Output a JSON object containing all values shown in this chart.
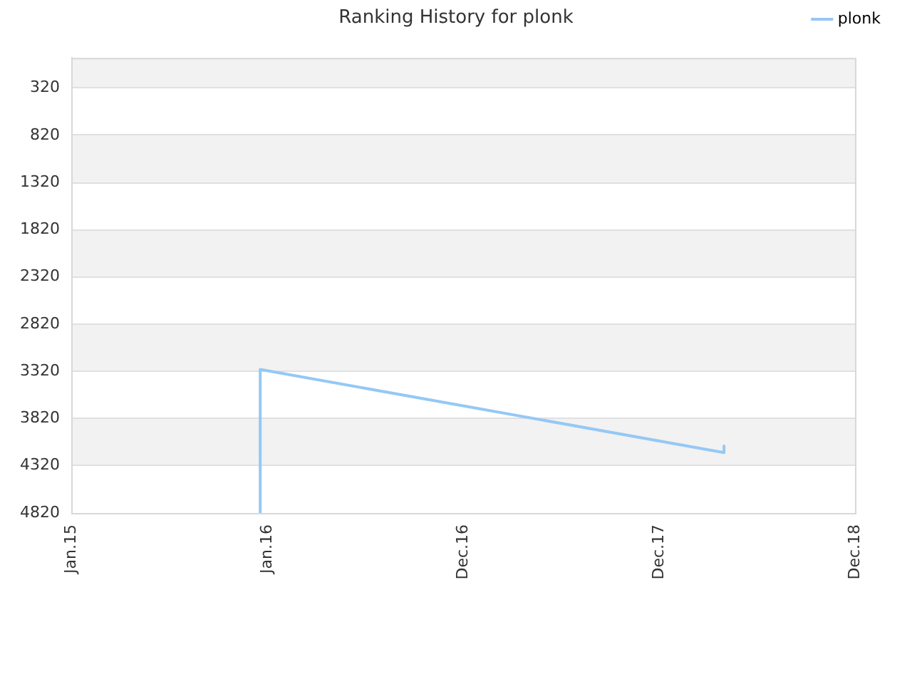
{
  "chart_data": {
    "type": "line",
    "title": "Ranking History for plonk",
    "x": [
      "2015-12-19",
      "2015-12-19",
      "2018-05-01",
      "2018-05-01"
    ],
    "series": [
      {
        "name": "plonk",
        "color": "#95c8f5",
        "values": [
          4820,
          3300,
          4180,
          4110
        ]
      }
    ],
    "xlim": [
      "2015-01-01",
      "2018-12-31"
    ],
    "xticks": [
      {
        "value": "2015-01-01",
        "label": "Jan.15"
      },
      {
        "value": "2016-01-01",
        "label": "Jan.16"
      },
      {
        "value": "2016-12-31",
        "label": "Dec.16"
      },
      {
        "value": "2017-12-31",
        "label": "Dec.17"
      },
      {
        "value": "2018-12-31",
        "label": "Dec.18"
      }
    ],
    "ylim": [
      4820,
      0
    ],
    "yticks": [
      320,
      820,
      1320,
      1820,
      2320,
      2820,
      3320,
      3820,
      4320,
      4820
    ],
    "grid": "y",
    "legend": "top right",
    "marker": "none"
  }
}
